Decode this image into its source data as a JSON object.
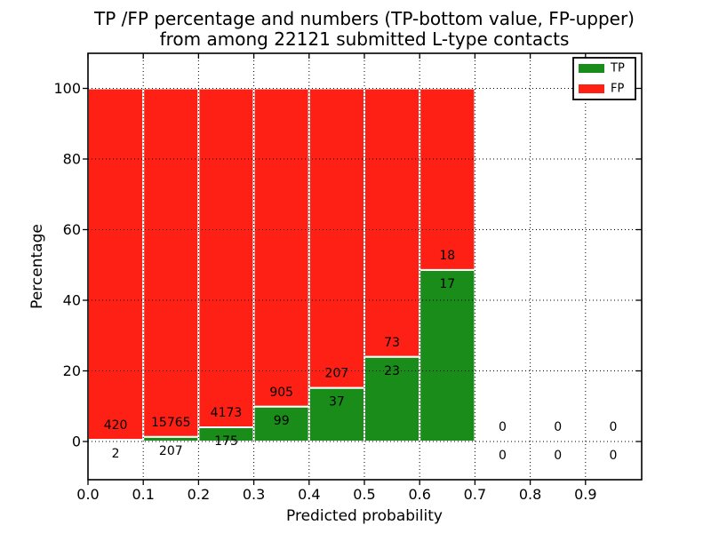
{
  "chart_data": {
    "type": "bar",
    "stacked": true,
    "normalized_percent": true,
    "title_line1": "TP /FP percentage and numbers (TP-bottom value, FP-upper)",
    "title_line2": "from among 22121 submitted L-type contacts",
    "xlabel": "Predicted probability",
    "ylabel": "Percentage",
    "total_submitted": 22121,
    "xlim": [
      0.0,
      1.0
    ],
    "ylim": [
      -10.8,
      110.1
    ],
    "bin_width": 0.1,
    "grid": "dotted",
    "x_tick_labels": [
      "0.0",
      "0.1",
      "0.2",
      "0.3",
      "0.4",
      "0.5",
      "0.6",
      "0.7",
      "0.8",
      "0.9"
    ],
    "y_tick_values": [
      0,
      20,
      40,
      60,
      80,
      100
    ],
    "y_tick_labels": [
      "0",
      "20",
      "40",
      "60",
      "80",
      "100"
    ],
    "categories": [
      "0.0-0.1",
      "0.1-0.2",
      "0.2-0.3",
      "0.3-0.4",
      "0.4-0.5",
      "0.5-0.6",
      "0.6-0.7",
      "0.7-0.8",
      "0.8-0.9",
      "0.9-1.0"
    ],
    "bin_starts": [
      0.0,
      0.1,
      0.2,
      0.3,
      0.4,
      0.5,
      0.6,
      0.7,
      0.8,
      0.9
    ],
    "series": [
      {
        "name": "TP",
        "color": "#1a8c1a",
        "counts": [
          2,
          207,
          175,
          99,
          37,
          23,
          17,
          0,
          0,
          0
        ]
      },
      {
        "name": "FP",
        "color": "#fe2014",
        "counts": [
          420,
          15765,
          4173,
          905,
          207,
          73,
          18,
          0,
          0,
          0
        ]
      }
    ],
    "legend": {
      "position": "upper right",
      "entries": [
        {
          "label": "TP",
          "color": "#1a8c1a"
        },
        {
          "label": "FP",
          "color": "#fe2014"
        }
      ]
    },
    "colors": {
      "grid": "#000000",
      "bar_edge": "#ffffff",
      "frame": "#000000",
      "background": "#ffffff"
    }
  }
}
